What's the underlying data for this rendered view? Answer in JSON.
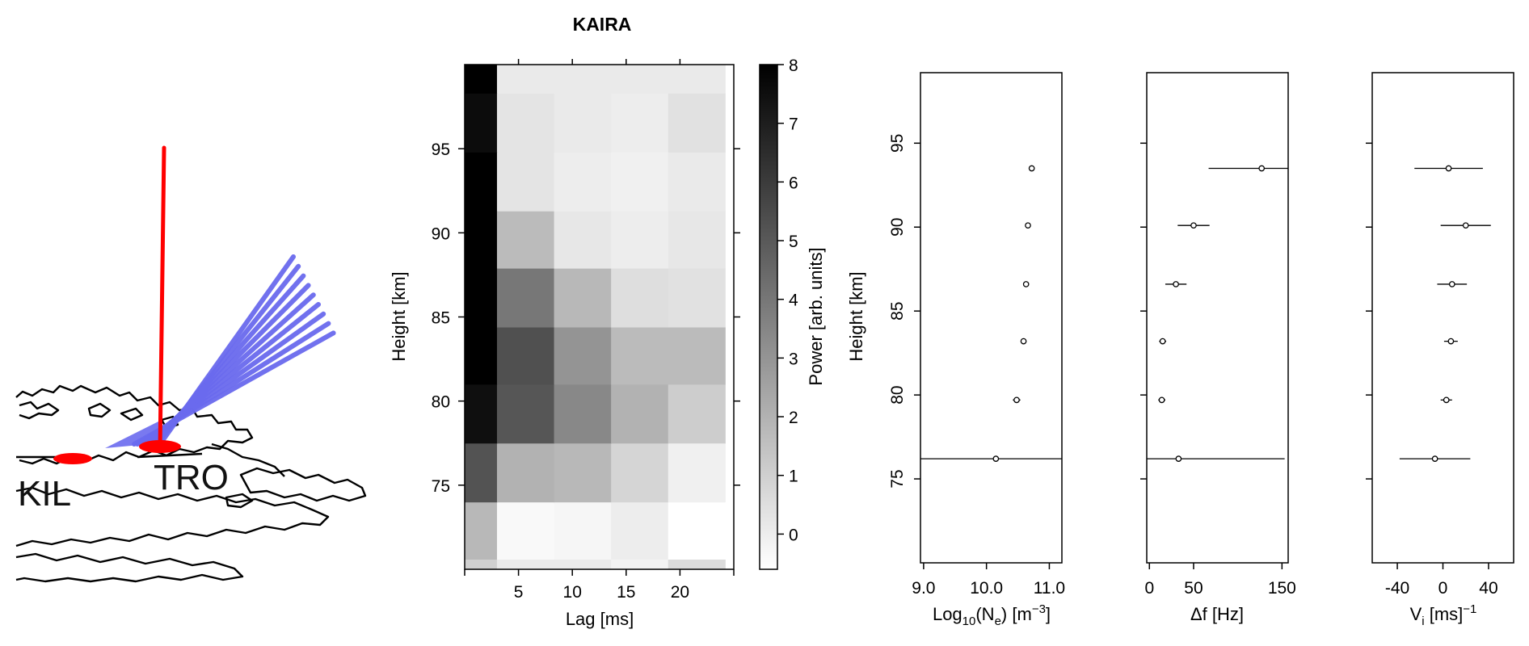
{
  "map": {
    "labels": [
      "KIL",
      "TRO"
    ],
    "colors": {
      "site": "#ff0000",
      "vertical_beam": "#ff0000",
      "beams": "#6a6aee"
    }
  },
  "chart_data": [
    {
      "type": "heatmap",
      "title": "KAIRA",
      "xlabel": "Lag [ms]",
      "ylabel": "Height [km]",
      "colorbar_label": "Power [arb. units]",
      "xticks": [
        5,
        10,
        15,
        20
      ],
      "yticks": [
        75,
        80,
        85,
        90,
        95
      ],
      "colorbar_ticks": [
        0,
        1,
        2,
        3,
        4,
        5,
        6,
        7,
        8
      ],
      "xlim": [
        0,
        25
      ],
      "ylim": [
        70,
        100
      ],
      "clim": [
        -0.6,
        8
      ],
      "x_edges": [
        0,
        3,
        8.3,
        13.6,
        18.9,
        24.2
      ],
      "y_edges": [
        70,
        70.6,
        74,
        77.5,
        81,
        84.4,
        87.9,
        91.3,
        94.8,
        98.3,
        100
      ],
      "values": [
        [
          1.0,
          0.1,
          0.1,
          -0.2,
          0.6
        ],
        [
          1.8,
          -0.4,
          -0.3,
          0.0,
          -0.6
        ],
        [
          5.2,
          2.0,
          1.8,
          0.8,
          -0.1
        ],
        [
          7.5,
          5.1,
          3.4,
          2.0,
          1.1
        ],
        [
          8.0,
          5.3,
          3.0,
          1.7,
          1.7
        ],
        [
          8.0,
          4.0,
          1.8,
          0.5,
          0.4
        ],
        [
          8.0,
          1.7,
          0.2,
          0.0,
          0.2
        ],
        [
          8.0,
          0.3,
          0.0,
          -0.1,
          0.1
        ],
        [
          7.6,
          0.3,
          0.1,
          0.0,
          0.4
        ],
        [
          8.0,
          0.1,
          0.1,
          0.1,
          0.1
        ]
      ]
    },
    {
      "type": "scatter",
      "xlabel": "Log",
      "xlabel_sub": "10",
      "xlabel_mid": "(N",
      "xlabel_sub2": "e",
      "xlabel_end": ") [m",
      "xlabel_sup": "−3",
      "xlabel_close": "]",
      "ylabel": "Height [km]",
      "xticks": [
        "9.0",
        "10.0",
        "11.0"
      ],
      "xtick_values": [
        9.0,
        10.0,
        11.0
      ],
      "yticks": [
        75,
        80,
        85,
        90,
        95
      ],
      "xlim": [
        8.95,
        11.2
      ],
      "ylim": [
        70,
        99.2
      ],
      "points": [
        {
          "y": 93.5,
          "x": 10.72,
          "err": 0.03
        },
        {
          "y": 90.1,
          "x": 10.66,
          "err": 0.03
        },
        {
          "y": 86.6,
          "x": 10.63,
          "err": 0.03
        },
        {
          "y": 83.2,
          "x": 10.59,
          "err": 0.04
        },
        {
          "y": 79.7,
          "x": 10.48,
          "err": 0.06
        },
        {
          "y": 76.2,
          "x": 10.15,
          "err": 1.2
        }
      ]
    },
    {
      "type": "scatter",
      "xlabel": "Δf [Hz]",
      "xticks": [
        "0",
        "50",
        "150"
      ],
      "xtick_values": [
        0,
        50,
        150
      ],
      "yticks": [
        75,
        80,
        85,
        90,
        95
      ],
      "xlim": [
        -3,
        157
      ],
      "ylim": [
        70,
        99.2
      ],
      "points": [
        {
          "y": 93.5,
          "x": 127,
          "err": 60
        },
        {
          "y": 90.1,
          "x": 50,
          "err": 18
        },
        {
          "y": 86.6,
          "x": 30,
          "err": 12
        },
        {
          "y": 83.2,
          "x": 15,
          "err": 4
        },
        {
          "y": 79.7,
          "x": 14,
          "err": 4
        },
        {
          "y": 76.2,
          "x": 33,
          "err": 120
        }
      ]
    },
    {
      "type": "scatter",
      "xlabel": "V",
      "xlabel_sub": "i",
      "xlabel_end": " [ms]",
      "xlabel_sup": "−1",
      "xticks": [
        "-40",
        "0",
        "40"
      ],
      "xtick_values": [
        -40,
        0,
        40
      ],
      "yticks": [
        75,
        80,
        85,
        90,
        95
      ],
      "xlim": [
        -62,
        62
      ],
      "ylim": [
        70,
        99.2
      ],
      "points": [
        {
          "y": 93.5,
          "x": 5,
          "err": 30
        },
        {
          "y": 90.1,
          "x": 20,
          "err": 22
        },
        {
          "y": 86.6,
          "x": 8,
          "err": 13
        },
        {
          "y": 83.2,
          "x": 7,
          "err": 6
        },
        {
          "y": 79.7,
          "x": 3,
          "err": 5
        },
        {
          "y": 76.2,
          "x": -7,
          "err": 31
        }
      ]
    }
  ]
}
